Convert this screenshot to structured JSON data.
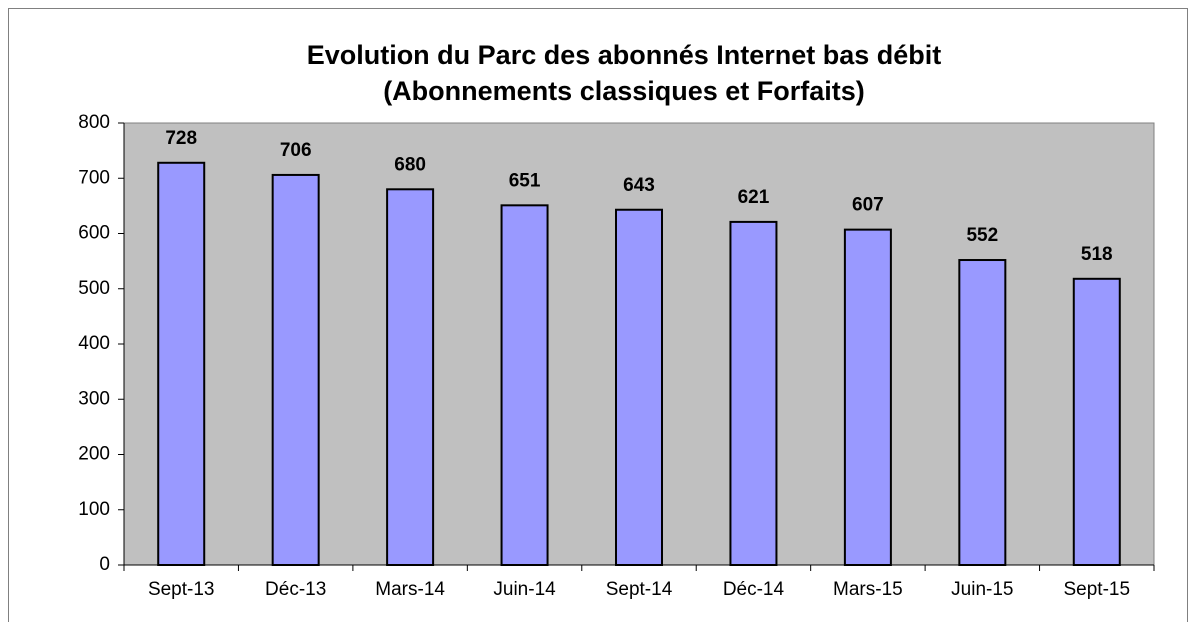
{
  "chart_data": {
    "type": "bar",
    "title": [
      "Evolution du Parc des abonnés Internet bas débit",
      "(Abonnements classiques et Forfaits)"
    ],
    "categories": [
      "Sept-13",
      "Déc-13",
      "Mars-14",
      "Juin-14",
      "Sept-14",
      "Déc-14",
      "Mars-15",
      "Juin-15",
      "Sept-15"
    ],
    "values": [
      728,
      706,
      680,
      651,
      643,
      621,
      607,
      552,
      518
    ],
    "color": "#9999ff",
    "ylim": [
      0,
      800
    ],
    "yticks": [
      0,
      100,
      200,
      300,
      400,
      500,
      600,
      700,
      800
    ],
    "grid": false
  }
}
